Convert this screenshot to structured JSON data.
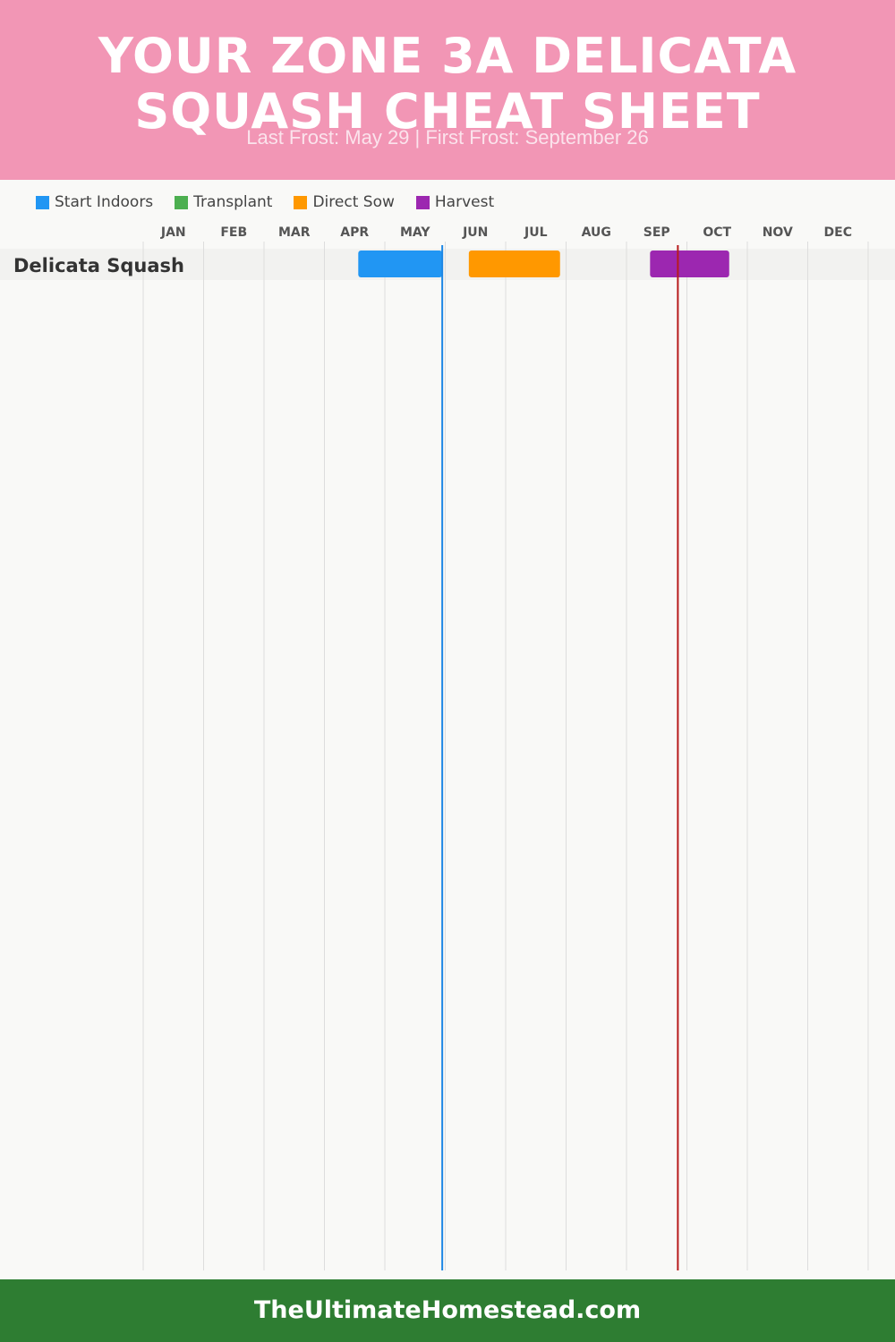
{
  "header": {
    "title": "YOUR ZONE 3A DELICATA SQUASH CHEAT SHEET",
    "subtitle": "Last Frost: May 29 | First Frost: September 26"
  },
  "legend": [
    {
      "label": "Start Indoors",
      "color": "#2196f3"
    },
    {
      "label": "Transplant",
      "color": "#4caf50"
    },
    {
      "label": "Direct Sow",
      "color": "#ff9800"
    },
    {
      "label": "Harvest",
      "color": "#9c27b0"
    }
  ],
  "chart_data": {
    "type": "gantt",
    "months": [
      "JAN",
      "FEB",
      "MAR",
      "APR",
      "MAY",
      "JUN",
      "JUL",
      "AUG",
      "SEP",
      "OCT",
      "NOV",
      "DEC"
    ],
    "rows": [
      {
        "name": "Delicata Squash",
        "periods": [
          {
            "phase": "Start Indoors",
            "start": "Apr 15",
            "end": "May 29",
            "start_month": 4.56,
            "end_month": 5.95,
            "color": "#2196f3"
          },
          {
            "phase": "Direct Sow",
            "start": "Jun 12",
            "end": "Jul 27",
            "start_month": 6.39,
            "end_month": 7.9,
            "color": "#ff9800"
          },
          {
            "phase": "Harvest",
            "start": "Sep 12",
            "end": "Oct 22",
            "start_month": 9.39,
            "end_month": 10.7,
            "color": "#9c27b0"
          }
        ]
      }
    ],
    "markers": [
      {
        "name": "Last Frost",
        "date": "May 29",
        "month": 5.95,
        "color": "#1e88e5"
      },
      {
        "name": "First Frost",
        "date": "September 26",
        "month": 9.85,
        "color": "#b71c1c"
      }
    ]
  },
  "footer": {
    "text": "TheUltimateHomestead.com"
  }
}
